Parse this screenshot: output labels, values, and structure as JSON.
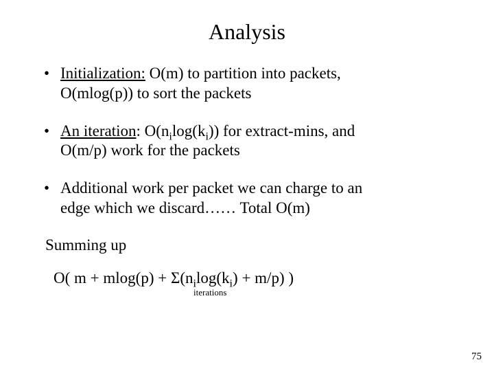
{
  "title": "Analysis",
  "bullets": [
    {
      "lead": "Initialization:",
      "rest_line1": " O(m) to partition into packets,",
      "line2": "O(mlog(p)) to sort the packets"
    },
    {
      "lead": "An iteration",
      "rest_line1_a": ": O(n",
      "sub1": "i",
      "rest_line1_b": "log(k",
      "sub2": "i",
      "rest_line1_c": ")) for extract-mins, and",
      "line2": "O(m/p) work for the packets"
    },
    {
      "line1": "Additional work per packet we can charge to an",
      "line2": "edge which we discard…… Total O(m)"
    }
  ],
  "summing_label": "Summing up",
  "formula": {
    "a": "O( m + mlog(p) + Σ(n",
    "sub1": "i",
    "b": "log(k",
    "sub2": "i",
    "c": ") + m/p) )",
    "sum_label": "iterations"
  },
  "page_number": "75",
  "colors": {
    "text": "#000000",
    "background": "#ffffff"
  }
}
